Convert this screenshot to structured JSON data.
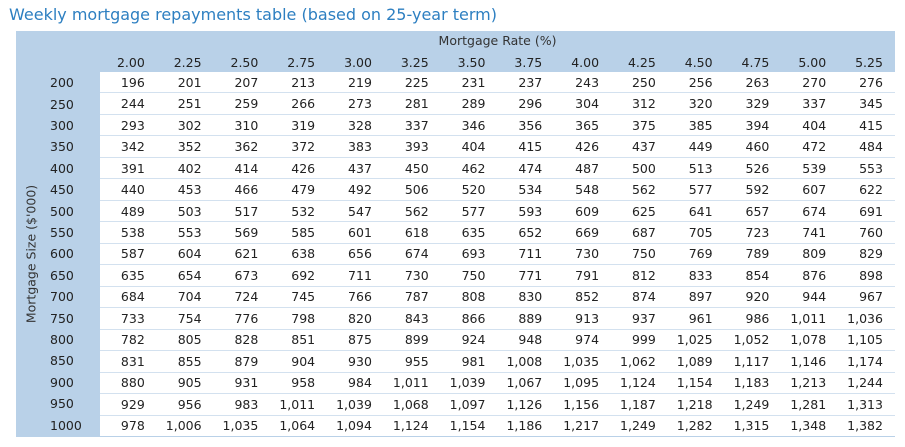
{
  "title": "Weekly mortgage repayments table (based on 25-year term)",
  "x_axis_title": "Mortgage Rate (%)",
  "y_axis_title": "Mortgage Size ($'000)",
  "rates": [
    "2.00",
    "2.25",
    "2.50",
    "2.75",
    "3.00",
    "3.25",
    "3.50",
    "3.75",
    "4.00",
    "4.25",
    "4.50",
    "4.75",
    "5.00",
    "5.25"
  ],
  "sizes": [
    "200",
    "250",
    "300",
    "350",
    "400",
    "450",
    "500",
    "550",
    "600",
    "650",
    "700",
    "750",
    "800",
    "850",
    "900",
    "950",
    "1000"
  ],
  "rows": [
    [
      "196",
      "201",
      "207",
      "213",
      "219",
      "225",
      "231",
      "237",
      "243",
      "250",
      "256",
      "263",
      "270",
      "276"
    ],
    [
      "244",
      "251",
      "259",
      "266",
      "273",
      "281",
      "289",
      "296",
      "304",
      "312",
      "320",
      "329",
      "337",
      "345"
    ],
    [
      "293",
      "302",
      "310",
      "319",
      "328",
      "337",
      "346",
      "356",
      "365",
      "375",
      "385",
      "394",
      "404",
      "415"
    ],
    [
      "342",
      "352",
      "362",
      "372",
      "383",
      "393",
      "404",
      "415",
      "426",
      "437",
      "449",
      "460",
      "472",
      "484"
    ],
    [
      "391",
      "402",
      "414",
      "426",
      "437",
      "450",
      "462",
      "474",
      "487",
      "500",
      "513",
      "526",
      "539",
      "553"
    ],
    [
      "440",
      "453",
      "466",
      "479",
      "492",
      "506",
      "520",
      "534",
      "548",
      "562",
      "577",
      "592",
      "607",
      "622"
    ],
    [
      "489",
      "503",
      "517",
      "532",
      "547",
      "562",
      "577",
      "593",
      "609",
      "625",
      "641",
      "657",
      "674",
      "691"
    ],
    [
      "538",
      "553",
      "569",
      "585",
      "601",
      "618",
      "635",
      "652",
      "669",
      "687",
      "705",
      "723",
      "741",
      "760"
    ],
    [
      "587",
      "604",
      "621",
      "638",
      "656",
      "674",
      "693",
      "711",
      "730",
      "750",
      "769",
      "789",
      "809",
      "829"
    ],
    [
      "635",
      "654",
      "673",
      "692",
      "711",
      "730",
      "750",
      "771",
      "791",
      "812",
      "833",
      "854",
      "876",
      "898"
    ],
    [
      "684",
      "704",
      "724",
      "745",
      "766",
      "787",
      "808",
      "830",
      "852",
      "874",
      "897",
      "920",
      "944",
      "967"
    ],
    [
      "733",
      "754",
      "776",
      "798",
      "820",
      "843",
      "866",
      "889",
      "913",
      "937",
      "961",
      "986",
      "1,011",
      "1,036"
    ],
    [
      "782",
      "805",
      "828",
      "851",
      "875",
      "899",
      "924",
      "948",
      "974",
      "999",
      "1,025",
      "1,052",
      "1,078",
      "1,105"
    ],
    [
      "831",
      "855",
      "879",
      "904",
      "930",
      "955",
      "981",
      "1,008",
      "1,035",
      "1,062",
      "1,089",
      "1,117",
      "1,146",
      "1,174"
    ],
    [
      "880",
      "905",
      "931",
      "958",
      "984",
      "1,011",
      "1,039",
      "1,067",
      "1,095",
      "1,124",
      "1,154",
      "1,183",
      "1,213",
      "1,244"
    ],
    [
      "929",
      "956",
      "983",
      "1,011",
      "1,039",
      "1,068",
      "1,097",
      "1,126",
      "1,156",
      "1,187",
      "1,218",
      "1,249",
      "1,281",
      "1,313"
    ],
    [
      "978",
      "1,006",
      "1,035",
      "1,064",
      "1,094",
      "1,124",
      "1,154",
      "1,186",
      "1,217",
      "1,249",
      "1,282",
      "1,315",
      "1,348",
      "1,382"
    ]
  ]
}
